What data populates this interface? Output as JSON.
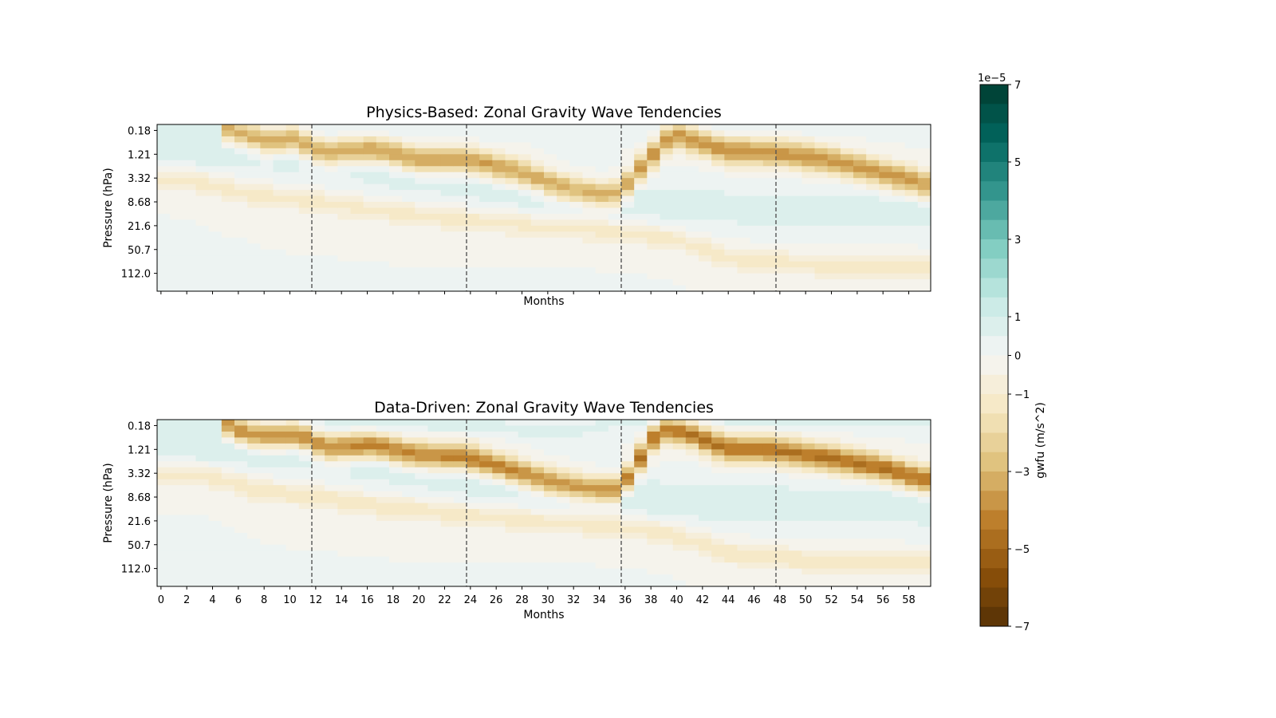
{
  "chart_data": [
    {
      "type": "heatmap",
      "title": "Physics-Based: Zonal Gravity Wave Tendencies",
      "xlabel": "Months",
      "ylabel": "Pressure (hPa)",
      "xlim": [
        0,
        60
      ],
      "x_ticks": [
        0,
        2,
        4,
        6,
        8,
        10,
        12,
        14,
        16,
        18,
        20,
        22,
        24,
        26,
        28,
        30,
        32,
        34,
        36,
        38,
        40,
        42,
        44,
        46,
        48,
        50,
        52,
        54,
        56,
        58
      ],
      "x_tick_labels_shown": false,
      "y_tick_labels": [
        "0.18",
        "1.21",
        "3.32",
        "8.68",
        "21.6",
        "50.7",
        "112.0"
      ],
      "vlines": [
        12,
        24,
        36,
        48
      ],
      "bands": [
        {
          "points": [
            [
              5.5,
              0.2
            ],
            [
              8.5,
              0.7
            ],
            [
              10.5,
              0.6
            ],
            [
              13,
              1.2
            ],
            [
              17,
              1.05
            ],
            [
              20,
              1.5
            ],
            [
              24,
              1.5
            ],
            [
              28,
              2.0
            ],
            [
              31,
              2.6
            ],
            [
              35,
              3.0
            ],
            [
              36,
              2.8
            ],
            [
              40,
              0.35
            ],
            [
              44,
              1.1
            ],
            [
              48,
              1.2
            ],
            [
              52,
              1.5
            ],
            [
              56,
              2.0
            ],
            [
              60,
              2.6
            ]
          ],
          "value": -3.8,
          "width": 0.55
        },
        {
          "points": [
            [
              0,
              2.2
            ],
            [
              4,
              2.5
            ],
            [
              8,
              3.0
            ],
            [
              12,
              3.2
            ],
            [
              18,
              3.7
            ],
            [
              24,
              4.0
            ],
            [
              30,
              4.3
            ],
            [
              36,
              4.5
            ],
            [
              40,
              4.8
            ],
            [
              44,
              5.6
            ],
            [
              50,
              5.9
            ],
            [
              60,
              6.0
            ]
          ],
          "value": -1.2,
          "width": 0.5
        },
        {
          "points": [
            [
              0,
              1.0
            ],
            [
              6,
              1.2
            ],
            [
              12,
              1.4
            ],
            [
              18,
              2.0
            ],
            [
              24,
              2.5
            ],
            [
              30,
              3.0
            ],
            [
              36,
              3.2
            ],
            [
              44,
              3.5
            ],
            [
              52,
              3.6
            ],
            [
              60,
              3.7
            ]
          ],
          "value": 0.8,
          "width": 0.9
        },
        {
          "points": [
            [
              0,
              0.0
            ],
            [
              12,
              0.2
            ],
            [
              24,
              0.2
            ],
            [
              36,
              0.1
            ],
            [
              48,
              0.0
            ],
            [
              60,
              0.1
            ]
          ],
          "value": 0.5,
          "width": 0.35
        }
      ]
    },
    {
      "type": "heatmap",
      "title": "Data-Driven: Zonal Gravity Wave Tendencies",
      "xlabel": "Months",
      "ylabel": "Pressure (hPa)",
      "xlim": [
        0,
        60
      ],
      "x_ticks": [
        0,
        2,
        4,
        6,
        8,
        10,
        12,
        14,
        16,
        18,
        20,
        22,
        24,
        26,
        28,
        30,
        32,
        34,
        36,
        38,
        40,
        42,
        44,
        46,
        48,
        50,
        52,
        54,
        56,
        58
      ],
      "x_tick_labels_shown": true,
      "y_tick_labels": [
        "0.18",
        "1.21",
        "3.32",
        "8.68",
        "21.6",
        "50.7",
        "112.0"
      ],
      "vlines": [
        12,
        24,
        36,
        48
      ],
      "bands": [
        {
          "points": [
            [
              5.5,
              0.2
            ],
            [
              7,
              0.6
            ],
            [
              9,
              0.7
            ],
            [
              11,
              0.6
            ],
            [
              13,
              1.2
            ],
            [
              17,
              1.1
            ],
            [
              20,
              1.5
            ],
            [
              24,
              1.6
            ],
            [
              28,
              2.2
            ],
            [
              31,
              2.7
            ],
            [
              35,
              3.0
            ],
            [
              36,
              2.9
            ],
            [
              39,
              0.35
            ],
            [
              41,
              0.5
            ],
            [
              44,
              1.2
            ],
            [
              48,
              1.3
            ],
            [
              52,
              1.6
            ],
            [
              56,
              2.0
            ],
            [
              60,
              2.6
            ]
          ],
          "value": -4.6,
          "width": 0.55
        },
        {
          "points": [
            [
              0,
              2.3
            ],
            [
              4,
              2.4
            ],
            [
              8,
              3.0
            ],
            [
              12,
              3.2
            ],
            [
              18,
              3.7
            ],
            [
              24,
              4.0
            ],
            [
              30,
              4.3
            ],
            [
              36,
              4.5
            ],
            [
              40,
              4.8
            ],
            [
              44,
              5.6
            ],
            [
              50,
              5.9
            ],
            [
              60,
              6.0
            ]
          ],
          "value": -1.3,
          "width": 0.5
        },
        {
          "points": [
            [
              0,
              1.0
            ],
            [
              6,
              1.2
            ],
            [
              12,
              1.4
            ],
            [
              18,
              2.0
            ],
            [
              24,
              2.5
            ],
            [
              30,
              3.0
            ],
            [
              36,
              3.2
            ],
            [
              44,
              3.5
            ],
            [
              52,
              3.6
            ],
            [
              60,
              3.7
            ]
          ],
          "value": 0.9,
          "width": 0.9
        },
        {
          "points": [
            [
              0,
              0.0
            ],
            [
              12,
              0.2
            ],
            [
              24,
              0.2
            ],
            [
              32,
              0.6
            ],
            [
              36,
              0.1
            ],
            [
              48,
              0.0
            ],
            [
              60,
              0.1
            ]
          ],
          "value": 0.7,
          "width": 0.35
        }
      ]
    }
  ],
  "colorbar": {
    "label": "gwfu (m/s^2)",
    "exponent": "1e−5",
    "vmin": -7,
    "vmax": 7,
    "levels": 28,
    "ticks": [
      7,
      5,
      3,
      1,
      0,
      -1,
      -3,
      -5,
      -7
    ],
    "tick_labels": [
      "7",
      "5",
      "3",
      "1",
      "0",
      "−1",
      "−3",
      "−5",
      "−7"
    ],
    "colormap": "BrBG",
    "color_stops": [
      "#543005",
      "#8c510a",
      "#bf812d",
      "#dfc27d",
      "#f6e8c3",
      "#f5f5f5",
      "#c7eae5",
      "#80cdc1",
      "#35978f",
      "#01665e",
      "#003c30"
    ]
  }
}
